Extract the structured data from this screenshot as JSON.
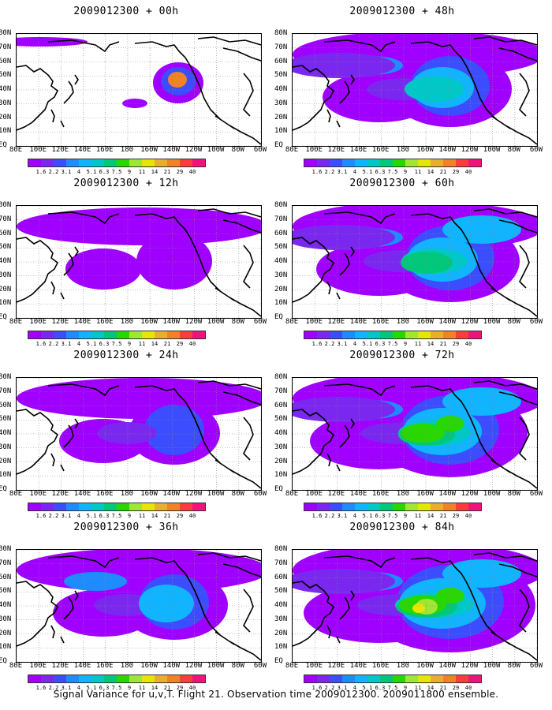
{
  "figure": {
    "caption": "Signal Variance for u,v,T. Flight 21. Observation time 2009012300. 2009011800 ensemble."
  },
  "lat_labels": [
    "80N",
    "70N",
    "60N",
    "50N",
    "40N",
    "30N",
    "20N",
    "10N",
    "EQ"
  ],
  "lon_labels": [
    "80E",
    "100E",
    "120E",
    "140E",
    "160E",
    "180",
    "160W",
    "140W",
    "120W",
    "100W",
    "80W",
    "60W"
  ],
  "colorbar": {
    "labels": [
      "1.6",
      "2.2",
      "3.1",
      "4",
      "5.1",
      "6.3",
      "7.5",
      "9",
      "11",
      "14",
      "21",
      "29",
      "40"
    ],
    "colors": [
      "#a000ff",
      "#7a28f0",
      "#3c4cff",
      "#1e8cff",
      "#10b4ff",
      "#00c8c8",
      "#00c87a",
      "#28d700",
      "#a0e632",
      "#e6e600",
      "#e6af2d",
      "#f08228",
      "#fa3c3c",
      "#f0147a"
    ]
  },
  "panels": [
    {
      "title": "2009012300 + 00h",
      "level": 0
    },
    {
      "title": "2009012300 + 48h",
      "level": 4
    },
    {
      "title": "2009012300 + 12h",
      "level": 1
    },
    {
      "title": "2009012300 + 60h",
      "level": 5
    },
    {
      "title": "2009012300 + 24h",
      "level": 2
    },
    {
      "title": "2009012300 + 72h",
      "level": 6
    },
    {
      "title": "2009012300 + 36h",
      "level": 3
    },
    {
      "title": "2009012300 + 84h",
      "level": 7
    }
  ]
}
